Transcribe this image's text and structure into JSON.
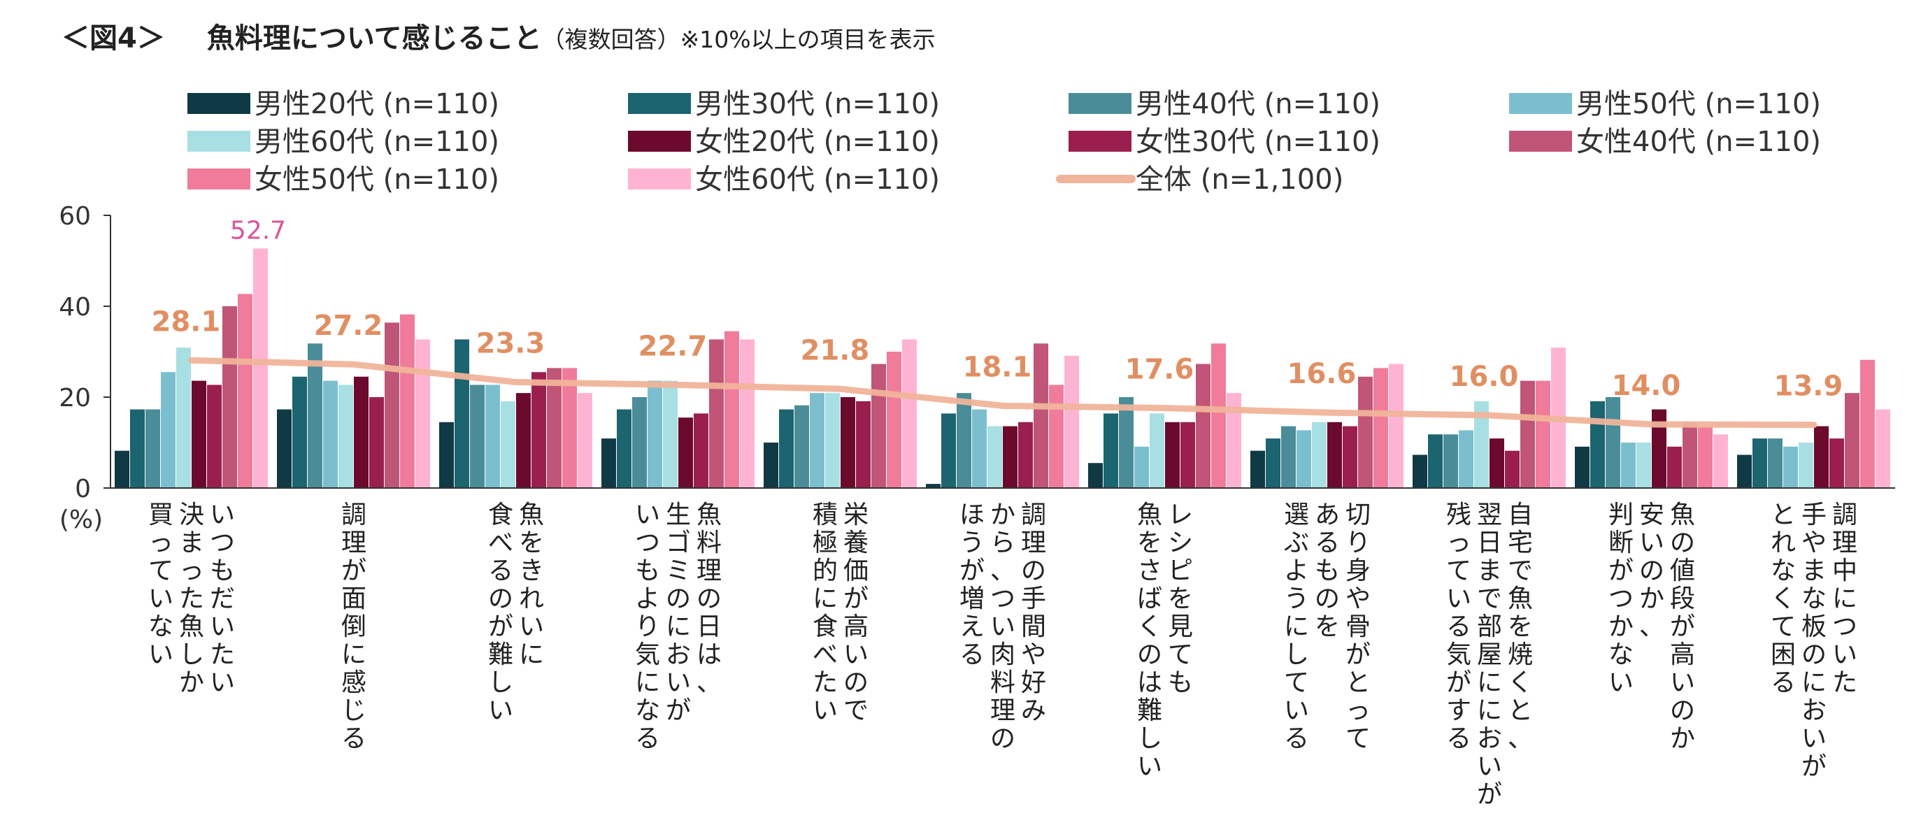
{
  "title": {
    "label": "＜図4＞",
    "main": "魚料理について感じること",
    "note": "（複数回答）※10%以上の項目を表示"
  },
  "chart_data": {
    "type": "bar",
    "title": "魚料理について感じること",
    "ylabel": "(%)",
    "ylim": [
      0,
      60
    ],
    "yticks": [
      0,
      20,
      40,
      60
    ],
    "categories": [
      "いつもだいたい決まった魚しか買っていない",
      "調理が面倒に感じる",
      "魚をきれいに食べるのが難しい",
      "魚料理の日は、生ゴミのにおいがいつもより気になる",
      "栄養価が高いので積極的に食べたい",
      "調理の手間や好みから、つい肉料理のほうが増える",
      "レシピを見ても魚をさばくのは難しい",
      "切り身や骨がとってあるものを選ぶようにしている",
      "自宅で魚を焼くと、翌日まで部屋ににおいが残っている気がする",
      "魚の値段が高いのか安いのか、判断がつかない",
      "調理中についた手やまな板のにおいがとれなくて困る"
    ],
    "category_lines": [
      [
        "いつもだいたい",
        "決まった魚しか",
        "買っていない"
      ],
      [
        "調理が面倒に感じる"
      ],
      [
        "魚をきれいに",
        "食べるのが難しい"
      ],
      [
        "魚料理の日は、",
        "生ゴミのにおいが",
        "いつもより気になる"
      ],
      [
        "栄養価が高いので",
        "積極的に食べたい"
      ],
      [
        "調理の手間や好み",
        "から、つい肉料理の",
        "ほうが増える"
      ],
      [
        "レシピを見ても",
        "魚をさばくのは難しい"
      ],
      [
        "切り身や骨がとって",
        "あるものを",
        "選ぶようにしている"
      ],
      [
        "自宅で魚を焼くと、",
        "翌日まで部屋ににおいが",
        "残っている気がする"
      ],
      [
        "魚の値段が高いのか",
        "安いのか、",
        "判断がつかない"
      ],
      [
        "調理中についた",
        "手やまな板のにおいが",
        "とれなくて困る"
      ]
    ],
    "series": [
      {
        "name": "男性20代 (n=110)",
        "color": "#0f3a45",
        "values": [
          8.2,
          17.3,
          14.5,
          10.9,
          10.0,
          0.9,
          5.5,
          8.2,
          7.3,
          9.1,
          7.3
        ]
      },
      {
        "name": "男性30代 (n=110)",
        "color": "#1b6470",
        "values": [
          17.3,
          24.5,
          32.7,
          17.3,
          17.3,
          16.4,
          16.4,
          10.9,
          11.8,
          19.1,
          10.9
        ]
      },
      {
        "name": "男性40代 (n=110)",
        "color": "#4a8d98",
        "values": [
          17.3,
          31.8,
          22.7,
          20.0,
          18.2,
          20.9,
          20.0,
          13.6,
          11.8,
          20.0,
          10.9
        ]
      },
      {
        "name": "男性50代 (n=110)",
        "color": "#7bbfcf",
        "values": [
          25.5,
          23.6,
          22.7,
          23.6,
          20.9,
          17.3,
          9.1,
          12.7,
          12.7,
          10.0,
          9.1
        ]
      },
      {
        "name": "男性60代 (n=110)",
        "color": "#a8dfe2",
        "values": [
          30.9,
          22.7,
          19.1,
          23.6,
          20.9,
          13.6,
          16.4,
          14.5,
          19.1,
          10.0,
          10.0
        ]
      },
      {
        "name": "女性20代 (n=110)",
        "color": "#6b0a2c",
        "values": [
          23.6,
          24.5,
          20.9,
          15.5,
          20.0,
          13.6,
          14.5,
          14.5,
          10.9,
          17.3,
          13.6
        ]
      },
      {
        "name": "女性30代 (n=110)",
        "color": "#9a1f4f",
        "values": [
          22.7,
          20.0,
          25.5,
          16.4,
          19.1,
          14.5,
          14.5,
          13.6,
          8.2,
          9.1,
          10.9
        ]
      },
      {
        "name": "女性40代 (n=110)",
        "color": "#c15577",
        "values": [
          40.0,
          36.4,
          26.4,
          32.7,
          27.3,
          31.8,
          27.3,
          24.5,
          23.6,
          14.5,
          20.9
        ]
      },
      {
        "name": "女性50代 (n=110)",
        "color": "#f07b9a",
        "values": [
          42.7,
          38.2,
          26.4,
          34.5,
          30.0,
          22.7,
          31.8,
          26.4,
          23.6,
          13.6,
          28.2
        ]
      },
      {
        "name": "女性60代 (n=110)",
        "color": "#ffb3d3",
        "values": [
          52.7,
          32.7,
          20.9,
          32.7,
          32.7,
          29.1,
          20.9,
          27.3,
          30.9,
          11.8,
          17.3
        ]
      }
    ],
    "total_line": {
      "name": "全体 (n=1,100)",
      "color": "#f0b49a",
      "values": [
        28.1,
        27.2,
        23.3,
        22.7,
        21.8,
        18.1,
        17.6,
        16.6,
        16.0,
        14.0,
        13.9
      ],
      "labels": [
        "28.1",
        "27.2",
        "23.3",
        "22.7",
        "21.8",
        "18.1",
        "17.6",
        "16.6",
        "16.0",
        "14.0",
        "13.9"
      ],
      "label_color": "#e08f63"
    },
    "annotations": [
      {
        "category_index": 0,
        "series_index": 9,
        "text": "52.7",
        "color": "#d9559b"
      }
    ],
    "legend_position": "top"
  }
}
